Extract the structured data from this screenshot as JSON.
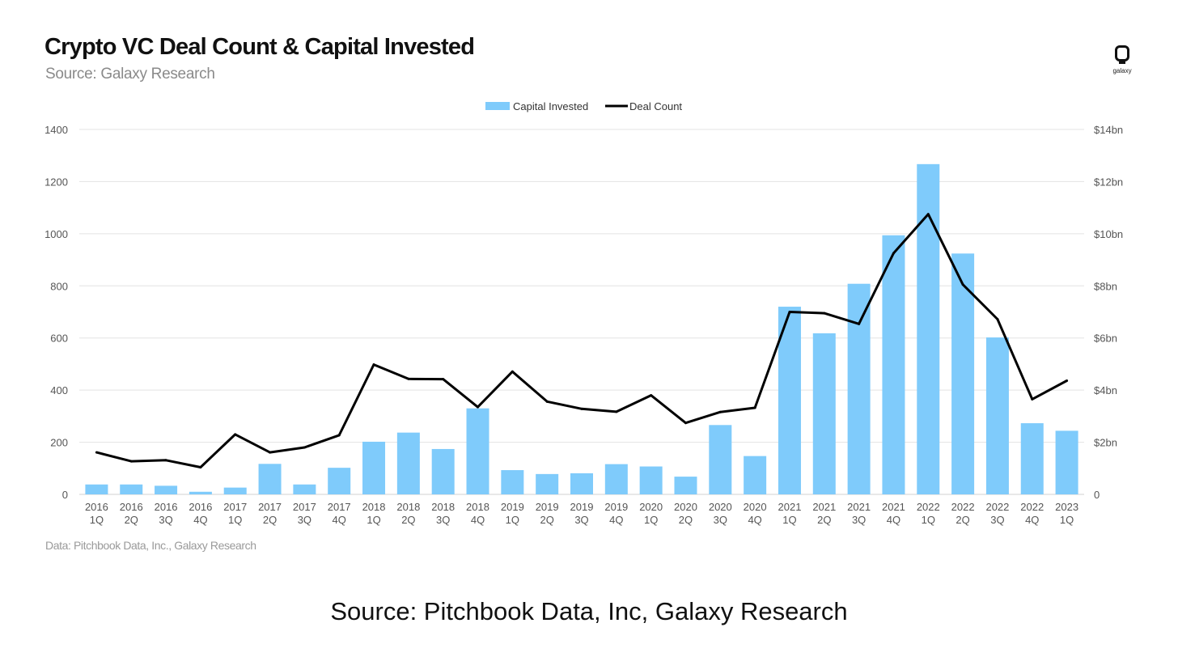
{
  "header": {
    "title": "Crypto VC Deal Count & Capital Invested",
    "subtitle": "Source: Galaxy Research",
    "logo_text": "galaxy"
  },
  "footer": {
    "note": "Data: Pitchbook Data, Inc., Galaxy Research",
    "caption": "Source: Pitchbook Data, Inc, Galaxy Research"
  },
  "colors": {
    "bar": "#7fcbfb",
    "line": "#000000",
    "grid": "#e3e3e3",
    "tick": "#555555"
  },
  "chart_data": {
    "type": "bar",
    "title": "Crypto VC Deal Count & Capital Invested",
    "categories_year": [
      "2016",
      "2016",
      "2016",
      "2016",
      "2017",
      "2017",
      "2017",
      "2017",
      "2018",
      "2018",
      "2018",
      "2018",
      "2019",
      "2019",
      "2019",
      "2019",
      "2020",
      "2020",
      "2020",
      "2020",
      "2021",
      "2021",
      "2021",
      "2021",
      "2022",
      "2022",
      "2022",
      "2022",
      "2023"
    ],
    "categories_quarter": [
      "1Q",
      "2Q",
      "3Q",
      "4Q",
      "1Q",
      "2Q",
      "3Q",
      "4Q",
      "1Q",
      "2Q",
      "3Q",
      "4Q",
      "1Q",
      "2Q",
      "3Q",
      "4Q",
      "1Q",
      "2Q",
      "3Q",
      "4Q",
      "1Q",
      "2Q",
      "3Q",
      "4Q",
      "1Q",
      "2Q",
      "3Q",
      "4Q",
      "1Q"
    ],
    "series": [
      {
        "name": "Capital Invested",
        "kind": "bar",
        "axis": "right",
        "unit": "$bn",
        "values": [
          0.38,
          0.38,
          0.33,
          0.1,
          0.26,
          1.17,
          0.38,
          1.02,
          2.02,
          2.37,
          1.74,
          3.3,
          0.93,
          0.78,
          0.81,
          1.16,
          1.07,
          0.68,
          2.66,
          1.47,
          7.2,
          6.18,
          8.08,
          9.94,
          12.67,
          9.24,
          6.02,
          2.73,
          2.44
        ]
      },
      {
        "name": "Deal Count",
        "kind": "line",
        "axis": "left",
        "values": [
          161,
          127,
          131,
          104,
          230,
          161,
          180,
          227,
          498,
          443,
          442,
          335,
          471,
          356,
          328,
          317,
          380,
          274,
          316,
          332,
          700,
          695,
          654,
          925,
          1075,
          805,
          672,
          365,
          436
        ]
      }
    ],
    "left_axis": {
      "min": 0,
      "max": 1400,
      "ticks": [
        "0",
        "200",
        "400",
        "600",
        "800",
        "1000",
        "1200",
        "1400"
      ]
    },
    "right_axis": {
      "min": 0,
      "max": 14,
      "ticks": [
        "0",
        "$2bn",
        "$4bn",
        "$6bn",
        "$8bn",
        "$10bn",
        "$12bn",
        "$14bn"
      ]
    },
    "legend": {
      "position": "top-center",
      "items": [
        "Capital Invested",
        "Deal Count"
      ]
    },
    "grid": true
  }
}
